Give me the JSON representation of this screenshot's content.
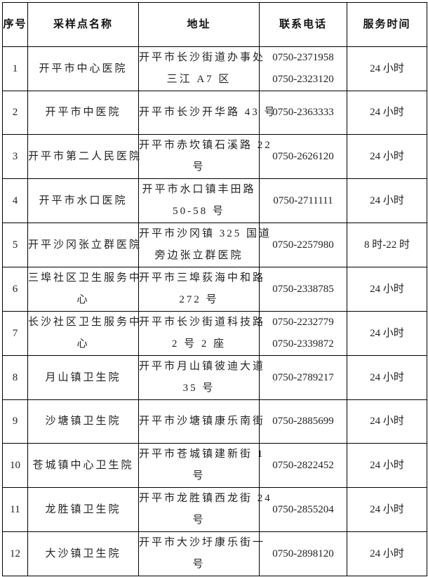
{
  "table": {
    "headers": [
      "序号",
      "采样点名称",
      "地址",
      "联系电话",
      "服务时间"
    ],
    "rows": [
      {
        "no": "1",
        "name": [
          "开平市中心医院"
        ],
        "address": [
          "开平市长沙街道办事处",
          "三江 A7 区"
        ],
        "phones": [
          "0750-2371958",
          "0750-2323120"
        ],
        "hours": "24 小时"
      },
      {
        "no": "2",
        "name": [
          "开平市中医院"
        ],
        "address": [
          "开平市长沙开华路 43 号"
        ],
        "phones": [
          "0750-2363333"
        ],
        "hours": "24 小时"
      },
      {
        "no": "3",
        "name": [
          "开平市第二人民医院"
        ],
        "address": [
          "开平市赤坎镇石溪路 22",
          "号"
        ],
        "phones": [
          "0750-2626120"
        ],
        "hours": "24 小时"
      },
      {
        "no": "4",
        "name": [
          "开平市水口医院"
        ],
        "address": [
          "开平市水口镇丰田路",
          "50-58 号"
        ],
        "phones": [
          "0750-2711111"
        ],
        "hours": "24 小时"
      },
      {
        "no": "5",
        "name": [
          "开平沙冈张立群医院"
        ],
        "address": [
          "开平市沙冈镇 325 国道",
          "旁边张立群医院"
        ],
        "phones": [
          "0750-2257980"
        ],
        "hours": "8 时-22 时"
      },
      {
        "no": "6",
        "name": [
          "三埠社区卫生服务中",
          "心"
        ],
        "address": [
          "开平市三埠荻海中和路",
          "272 号"
        ],
        "phones": [
          "0750-2338785"
        ],
        "hours": "24 小时"
      },
      {
        "no": "7",
        "name": [
          "长沙社区卫生服务中",
          "心"
        ],
        "address": [
          "开平市长沙街道科技路",
          "2 号 2 座"
        ],
        "phones": [
          "0750-2232779",
          "0750-2339872"
        ],
        "hours": "24 小时"
      },
      {
        "no": "8",
        "name": [
          "月山镇卫生院"
        ],
        "address": [
          "开平市月山镇彼迪大道",
          "35 号"
        ],
        "phones": [
          "0750-2789217"
        ],
        "hours": "24 小时"
      },
      {
        "no": "9",
        "name": [
          "沙塘镇卫生院"
        ],
        "address": [
          "开平市沙塘镇康乐南街"
        ],
        "phones": [
          "0750-2885699"
        ],
        "hours": "24 小时"
      },
      {
        "no": "10",
        "name": [
          "苍城镇中心卫生院"
        ],
        "address": [
          "开平市苍城镇建新街 1",
          "号"
        ],
        "phones": [
          "0750-2822452"
        ],
        "hours": "24 小时"
      },
      {
        "no": "11",
        "name": [
          "龙胜镇卫生院"
        ],
        "address": [
          "开平市龙胜镇西龙街 24",
          "号"
        ],
        "phones": [
          "0750-2855204"
        ],
        "hours": "24 小时"
      },
      {
        "no": "12",
        "name": [
          "大沙镇卫生院"
        ],
        "address": [
          "开平市大沙圩康乐街一",
          "号"
        ],
        "phones": [
          "0750-2898120"
        ],
        "hours": "24 小时"
      }
    ]
  }
}
